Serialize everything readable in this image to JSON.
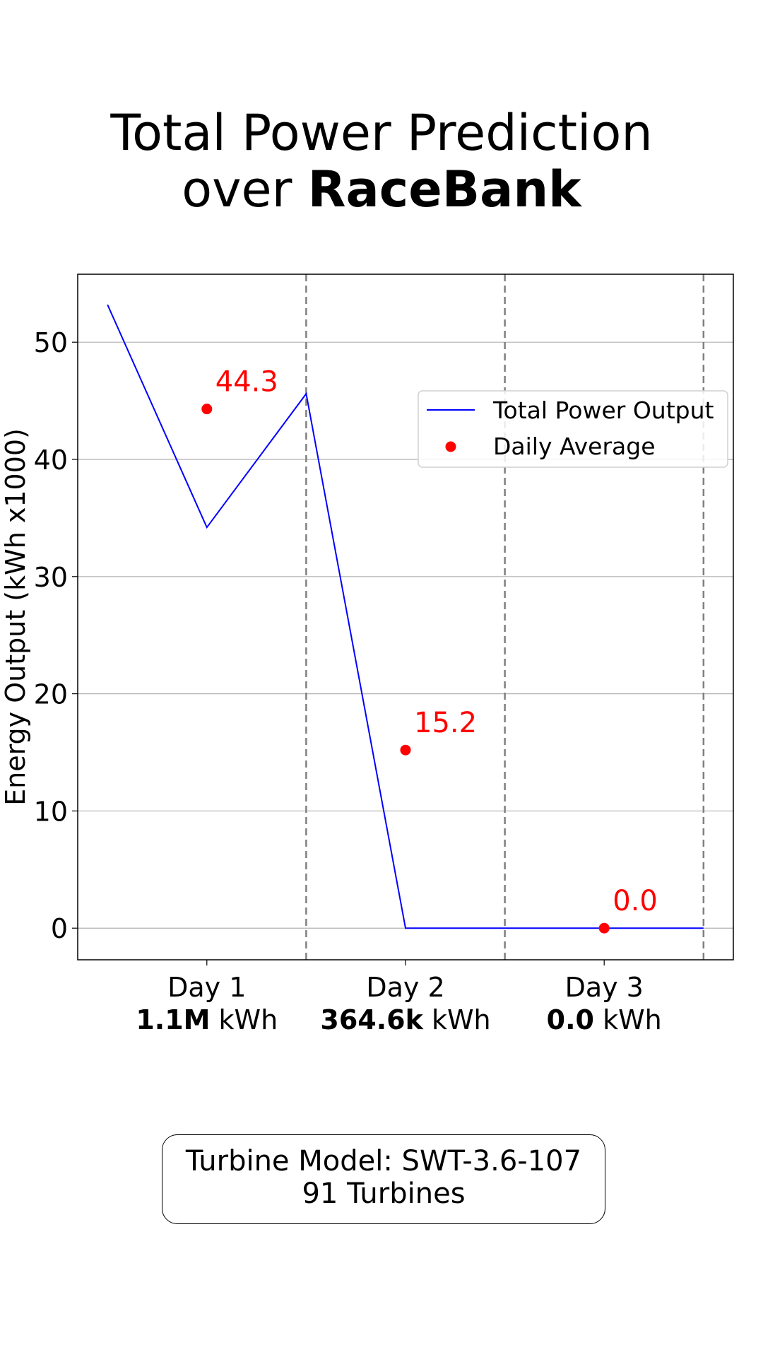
{
  "title": {
    "line1": "Total Power Prediction",
    "line2_prefix": "over ",
    "line2_bold": "RaceBank"
  },
  "info_box": {
    "model": "Turbine Model: SWT-3.6-107",
    "count": "91 Turbines"
  },
  "chart_data": {
    "type": "line",
    "ylabel": "Energy Output (kWh x1000)",
    "ylim": [
      -2.7,
      55.8
    ],
    "yticks": [
      0,
      10,
      20,
      30,
      40,
      50
    ],
    "xlim": [
      -0.15,
      3.15
    ],
    "grid": "horizontal",
    "day_boundaries": [
      1,
      2,
      3
    ],
    "legend": {
      "position": "upper-right",
      "entries": [
        "Total Power Output",
        "Daily Average"
      ]
    },
    "series": [
      {
        "name": "Total Power Output",
        "kind": "line",
        "color": "#0000ff",
        "x": [
          0,
          0.5,
          1,
          1.5,
          2,
          2.5,
          3
        ],
        "y": [
          53.2,
          34.2,
          45.6,
          0.0,
          0.0,
          0.0,
          0.0
        ]
      },
      {
        "name": "Daily Average",
        "kind": "scatter",
        "color": "#ff0000",
        "x": [
          0.5,
          1.5,
          2.5
        ],
        "y": [
          44.3,
          15.2,
          0.0
        ],
        "labels": [
          "44.3",
          "15.2",
          "0.0"
        ]
      }
    ],
    "day_labels": [
      {
        "x": 0.5,
        "day": "Day 1",
        "total_bold": "1.1M",
        "unit": " kWh"
      },
      {
        "x": 1.5,
        "day": "Day 2",
        "total_bold": "364.6k",
        "unit": " kWh"
      },
      {
        "x": 2.5,
        "day": "Day 3",
        "total_bold": "0.0",
        "unit": " kWh"
      }
    ]
  }
}
